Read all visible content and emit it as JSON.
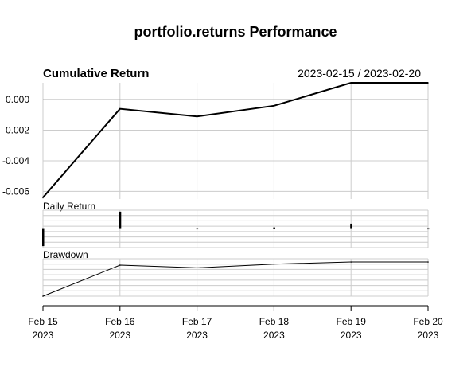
{
  "chart_data": {
    "type": "line",
    "title": "portfolio.returns Performance",
    "date_range": "2023-02-15 / 2023-02-20",
    "x": [
      "2023-02-15",
      "2023-02-16",
      "2023-02-17",
      "2023-02-18",
      "2023-02-19",
      "2023-02-20"
    ],
    "x_tick_labels": [
      {
        "day": "Feb 15",
        "year": "2023"
      },
      {
        "day": "Feb 16",
        "year": "2023"
      },
      {
        "day": "Feb 17",
        "year": "2023"
      },
      {
        "day": "Feb 18",
        "year": "2023"
      },
      {
        "day": "Feb 19",
        "year": "2023"
      },
      {
        "day": "Feb 20",
        "year": "2023"
      }
    ],
    "grid": true,
    "panels": [
      {
        "id": "cumulative",
        "title": "Cumulative Return",
        "type": "line",
        "ylim": [
          -0.0065,
          0.0011
        ],
        "y_ticks": [
          0.0,
          -0.002,
          -0.004,
          -0.006
        ],
        "y_tick_labels": [
          "0.000",
          "-0.002",
          "-0.004",
          "-0.006"
        ],
        "y_zero_line": true,
        "values": [
          -0.0064,
          -0.0006,
          -0.0011,
          -0.0004,
          0.0011,
          0.0011
        ]
      },
      {
        "id": "daily",
        "title": "Daily Return",
        "type": "bar",
        "ylim": [
          -0.0013,
          0.0012
        ],
        "values": [
          -0.0012,
          0.0011,
          -5e-05,
          5e-05,
          0.0003,
          0.0
        ]
      },
      {
        "id": "drawdown",
        "title": "Drawdown",
        "type": "line",
        "ylim": [
          -0.0064,
          0.0006
        ],
        "values": [
          -0.0064,
          -0.0006,
          -0.0011,
          -0.0004,
          0.0,
          0.0
        ]
      }
    ],
    "colors": {
      "line": "#000000",
      "grid": "#cccccc",
      "zero": "#999999"
    }
  }
}
